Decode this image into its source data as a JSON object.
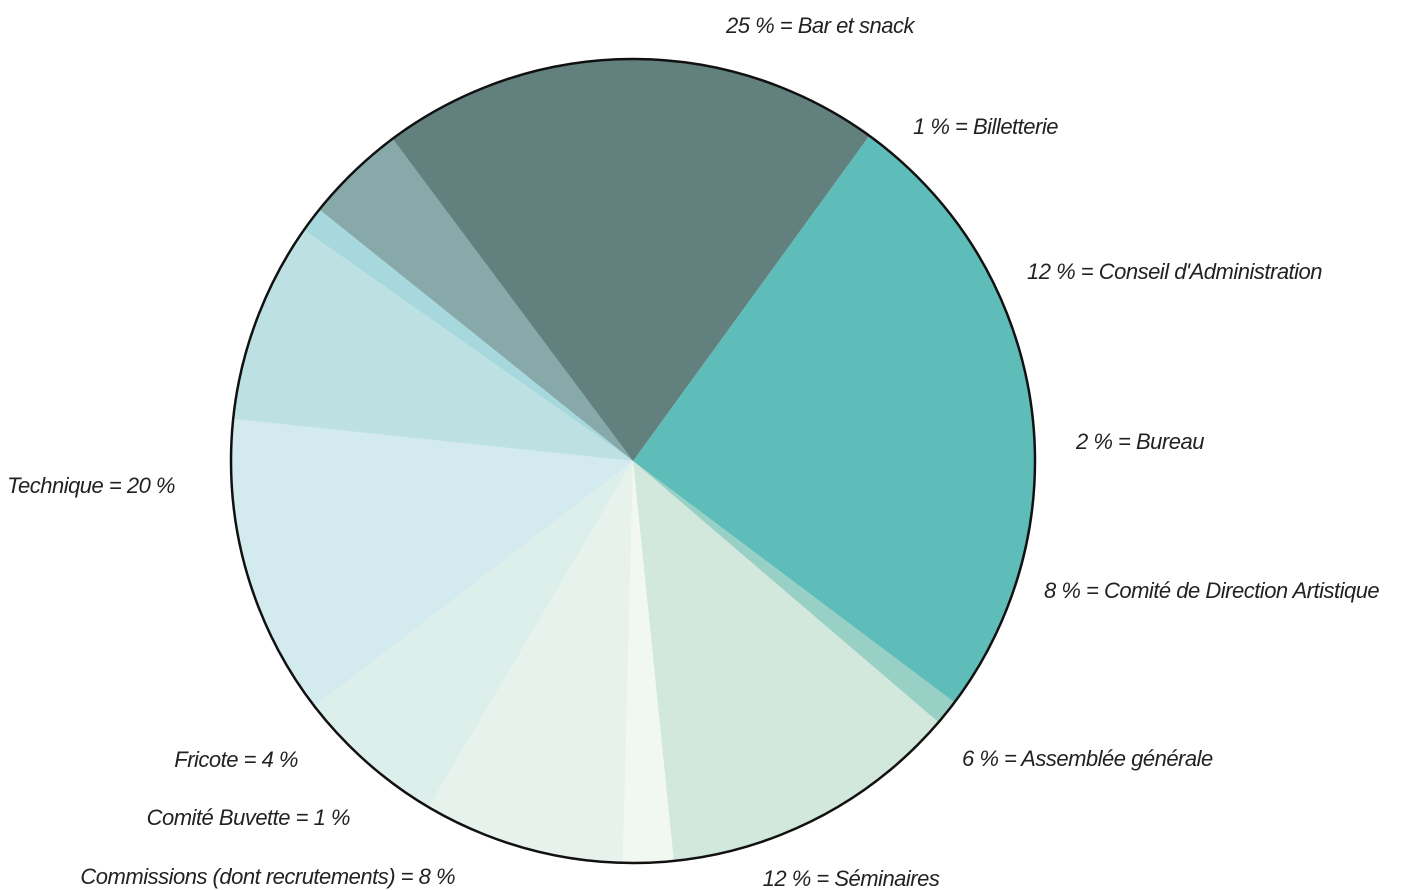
{
  "chart_data": {
    "type": "pie",
    "title": "",
    "slices": [
      {
        "name": "Bar et snack",
        "value": 25,
        "label": "25 % = Bar et snack",
        "color": "#5ebdb8"
      },
      {
        "name": "Billetterie",
        "value": 1,
        "label": "1 % = Billetterie",
        "color": "#99d0c6"
      },
      {
        "name": "Conseil d'Administration",
        "value": 12,
        "label": "12 % = Conseil d'Administration",
        "color": "#d2e8dc"
      },
      {
        "name": "Bureau",
        "value": 2,
        "label": "2 % = Bureau",
        "color": "#f1f7f1"
      },
      {
        "name": "Comité de Direction Artistique",
        "value": 8,
        "label": "8 % = Comité de Direction Artistique",
        "color": "#e7f2ed"
      },
      {
        "name": "Assemblée générale",
        "value": 6,
        "label": "6 % = Assemblée générale",
        "color": "#ddefea"
      },
      {
        "name": "Séminaires",
        "value": 12,
        "label": "12 % = Séminaires",
        "color": "#d3eaee"
      },
      {
        "name": "Commissions (dont recrutements)",
        "value": 8,
        "label": "Commissions (dont recrutements) = 8 %",
        "color": "#bde1e3"
      },
      {
        "name": "Comité Buvette",
        "value": 1,
        "label": "Comité Buvette = 1 %",
        "color": "#a6d8dd"
      },
      {
        "name": "Fricote",
        "value": 4,
        "label": "Fricote = 4 %",
        "color": "#87a9aa"
      },
      {
        "name": "Technique",
        "value": 20,
        "label": "Technique = 20 %",
        "color": "#62817e"
      }
    ],
    "start_angle_deg": 36,
    "direction": "clockwise",
    "outline_color": "#111111"
  }
}
